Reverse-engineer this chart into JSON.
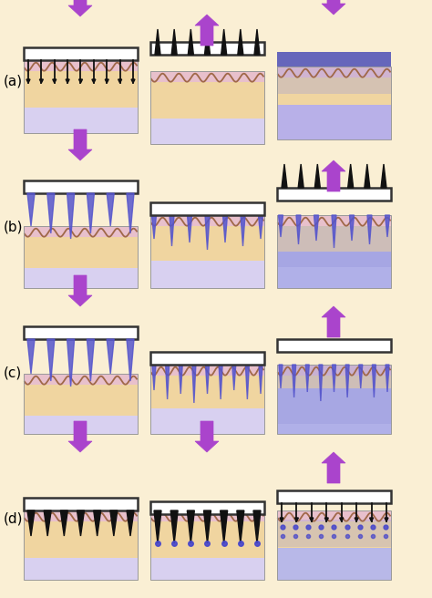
{
  "bg_color": "#faefd4",
  "skin_tan": "#f0d5a0",
  "skin_pink": "#e8c0cc",
  "skin_wave_color": "#a06848",
  "sub_lavender": "#d8d0f0",
  "blue_needle": "#5555cc",
  "blue_fill": "#9999dd",
  "black_needle": "#111111",
  "arrow_purple": "#aa44cc",
  "box_face": "#ffffff",
  "box_edge": "#333333",
  "blue_patch_top": "#5555aa",
  "labels": [
    "(a)",
    "(b)",
    "(c)",
    "(d)"
  ],
  "figsize": [
    4.74,
    6.56
  ],
  "dpi": 100
}
